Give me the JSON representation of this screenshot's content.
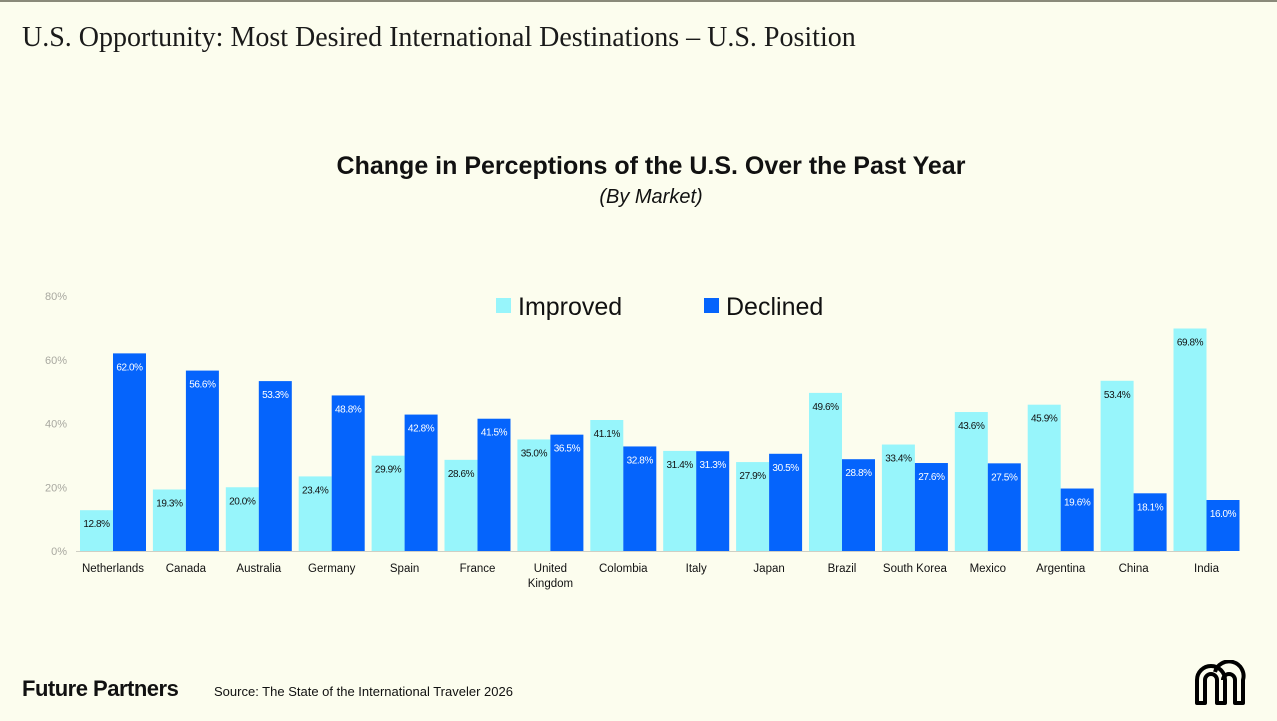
{
  "slide_title": "U.S. Opportunity: Most Desired International Destinations – U.S. Position",
  "footer": {
    "brand": "Future Partners",
    "source": "Source: The State of the International Traveler 2026",
    "logo_icon": "arch-m-logo-icon"
  },
  "colors": {
    "background": "#fcfdee",
    "improved": "#97f5fb",
    "declined": "#0564fc"
  },
  "chart_data": {
    "type": "bar",
    "title": "Change in Perceptions of the U.S. Over the Past Year",
    "subtitle": "(By Market)",
    "xlabel": "",
    "ylabel": "",
    "ylim": [
      0,
      80
    ],
    "yticks": [
      0,
      20,
      40,
      60,
      80
    ],
    "ytick_labels": [
      "0%",
      "20%",
      "40%",
      "60%",
      "80%"
    ],
    "grid": false,
    "legend_position": "top-center",
    "categories": [
      "Netherlands",
      "Canada",
      "Australia",
      "Germany",
      "Spain",
      "France",
      "United Kingdom",
      "Colombia",
      "Italy",
      "Japan",
      "Brazil",
      "South Korea",
      "Mexico",
      "Argentina",
      "China",
      "India"
    ],
    "category_lines": [
      [
        "Netherlands"
      ],
      [
        "Canada"
      ],
      [
        "Australia"
      ],
      [
        "Germany"
      ],
      [
        "Spain"
      ],
      [
        "France"
      ],
      [
        "United",
        "Kingdom"
      ],
      [
        "Colombia"
      ],
      [
        "Italy"
      ],
      [
        "Japan"
      ],
      [
        "Brazil"
      ],
      [
        "South Korea"
      ],
      [
        "Mexico"
      ],
      [
        "Argentina"
      ],
      [
        "China"
      ],
      [
        "India"
      ]
    ],
    "series": [
      {
        "name": "Improved",
        "color": "#97f5fb",
        "label_color": "#111111",
        "values": [
          12.8,
          19.3,
          20.0,
          23.4,
          29.9,
          28.6,
          35.0,
          41.1,
          31.4,
          27.9,
          49.6,
          33.4,
          43.6,
          45.9,
          53.4,
          69.8
        ],
        "labels": [
          "12.8%",
          "19.3%",
          "20.0%",
          "23.4%",
          "29.9%",
          "28.6%",
          "35.0%",
          "41.1%",
          "31.4%",
          "27.9%",
          "49.6%",
          "33.4%",
          "43.6%",
          "45.9%",
          "53.4%",
          "69.8%"
        ]
      },
      {
        "name": "Declined",
        "color": "#0564fc",
        "label_color": "#ffffff",
        "values": [
          62.0,
          56.6,
          53.3,
          48.8,
          42.8,
          41.5,
          36.5,
          32.8,
          31.3,
          30.5,
          28.8,
          27.6,
          27.5,
          19.6,
          18.1,
          16.0
        ],
        "labels": [
          "62.0%",
          "56.6%",
          "53.3%",
          "48.8%",
          "42.8%",
          "41.5%",
          "36.5%",
          "32.8%",
          "31.3%",
          "30.5%",
          "28.8%",
          "27.6%",
          "27.5%",
          "19.6%",
          "18.1%",
          "16.0%"
        ]
      }
    ]
  }
}
